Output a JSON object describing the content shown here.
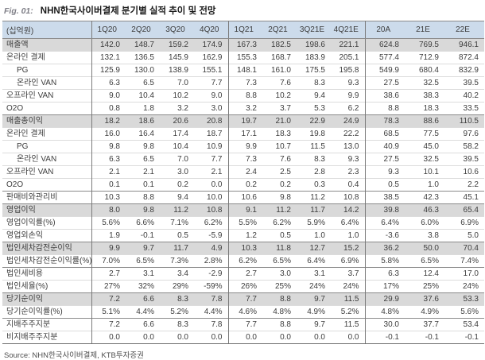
{
  "fig_label": "Fig. 01:",
  "title": "NHN한국사이버결제 분기별 실적 추이 및 전망",
  "source": "Source: NHN한국사이버결제, KTB투자증권",
  "colors": {
    "header_bg": "#ccdbeb",
    "section_row_bg": "#d9d9d9",
    "rule_line": "#8a8a8a",
    "light_line": "#dcdcdc",
    "text": "#3d3d3d"
  },
  "chart_data": {
    "type": "table",
    "unit_header": "(십억원)",
    "columns": [
      "1Q20",
      "2Q20",
      "3Q20",
      "4Q20",
      "1Q21",
      "2Q21",
      "3Q21E",
      "4Q21E",
      "20A",
      "21E",
      "22E"
    ],
    "group_separators_after": [
      3,
      7
    ],
    "rows": [
      {
        "label": "매출액",
        "indent": 0,
        "style": "section",
        "values": [
          "142.0",
          "148.7",
          "159.2",
          "174.9",
          "167.3",
          "182.5",
          "198.6",
          "221.1",
          "624.8",
          "769.5",
          "946.1"
        ]
      },
      {
        "label": "온라인 결제",
        "indent": 0,
        "style": "plain",
        "values": [
          "132.1",
          "136.5",
          "145.9",
          "162.9",
          "155.3",
          "168.7",
          "183.9",
          "205.1",
          "577.4",
          "712.9",
          "872.4"
        ]
      },
      {
        "label": "PG",
        "indent": 1,
        "style": "plain",
        "values": [
          "125.9",
          "130.0",
          "138.9",
          "155.1",
          "148.1",
          "161.0",
          "175.5",
          "195.8",
          "549.9",
          "680.4",
          "832.9"
        ]
      },
      {
        "label": "온라인 VAN",
        "indent": 1,
        "style": "plain",
        "values": [
          "6.3",
          "6.5",
          "7.0",
          "7.7",
          "7.3",
          "7.6",
          "8.3",
          "9.3",
          "27.5",
          "32.5",
          "39.5"
        ]
      },
      {
        "label": "오프라인 VAN",
        "indent": 0,
        "style": "plain",
        "values": [
          "9.0",
          "10.4",
          "10.2",
          "9.0",
          "8.8",
          "10.2",
          "9.4",
          "9.9",
          "38.6",
          "38.3",
          "40.2"
        ]
      },
      {
        "label": "O2O",
        "indent": 0,
        "style": "plain",
        "values": [
          "0.8",
          "1.8",
          "3.2",
          "3.0",
          "3.2",
          "3.7",
          "5.3",
          "6.2",
          "8.8",
          "18.3",
          "33.5"
        ]
      },
      {
        "label": "매출총이익",
        "indent": 0,
        "style": "section",
        "values": [
          "18.2",
          "18.6",
          "20.6",
          "20.8",
          "19.7",
          "21.0",
          "22.9",
          "24.9",
          "78.3",
          "88.6",
          "110.5"
        ]
      },
      {
        "label": "온라인 결제",
        "indent": 0,
        "style": "plain",
        "values": [
          "16.0",
          "16.4",
          "17.4",
          "18.7",
          "17.1",
          "18.3",
          "19.8",
          "22.2",
          "68.5",
          "77.5",
          "97.6"
        ]
      },
      {
        "label": "PG",
        "indent": 1,
        "style": "plain",
        "values": [
          "9.8",
          "9.8",
          "10.4",
          "10.9",
          "9.9",
          "10.7",
          "11.5",
          "13.0",
          "40.9",
          "45.0",
          "58.2"
        ]
      },
      {
        "label": "온라인 VAN",
        "indent": 1,
        "style": "plain",
        "values": [
          "6.3",
          "6.5",
          "7.0",
          "7.7",
          "7.3",
          "7.6",
          "8.3",
          "9.3",
          "27.5",
          "32.5",
          "39.5"
        ]
      },
      {
        "label": "오프라인 VAN",
        "indent": 0,
        "style": "plain",
        "values": [
          "2.1",
          "2.1",
          "3.0",
          "2.1",
          "2.4",
          "2.5",
          "2.8",
          "2.3",
          "9.3",
          "10.1",
          "10.6"
        ]
      },
      {
        "label": "O2O",
        "indent": 0,
        "style": "plain",
        "values": [
          "0.1",
          "0.1",
          "0.2",
          "0.0",
          "0.2",
          "0.2",
          "0.3",
          "0.4",
          "0.5",
          "1.0",
          "2.2"
        ]
      },
      {
        "label": "판매비와관리비",
        "indent": 0,
        "style": "rule",
        "values": [
          "10.3",
          "8.8",
          "9.4",
          "10.0",
          "10.6",
          "9.8",
          "11.2",
          "10.8",
          "38.5",
          "42.3",
          "45.1"
        ]
      },
      {
        "label": "영업이익",
        "indent": 0,
        "style": "section",
        "values": [
          "8.0",
          "9.8",
          "11.2",
          "10.8",
          "9.1",
          "11.2",
          "11.7",
          "14.2",
          "39.8",
          "46.3",
          "65.4"
        ]
      },
      {
        "label": "영업이익률(%)",
        "indent": 0,
        "style": "plain",
        "values": [
          "5.6%",
          "6.6%",
          "7.1%",
          "6.2%",
          "5.5%",
          "6.2%",
          "5.9%",
          "6.4%",
          "6.4%",
          "6.0%",
          "6.9%"
        ]
      },
      {
        "label": "영업외손익",
        "indent": 0,
        "style": "plain",
        "values": [
          "1.9",
          "-0.1",
          "0.5",
          "-5.9",
          "1.2",
          "0.5",
          "1.0",
          "1.0",
          "-3.6",
          "3.8",
          "5.0"
        ]
      },
      {
        "label": "법인세차감전순이익",
        "indent": 0,
        "style": "section",
        "values": [
          "9.9",
          "9.7",
          "11.7",
          "4.9",
          "10.3",
          "11.8",
          "12.7",
          "15.2",
          "36.2",
          "50.0",
          "70.4"
        ]
      },
      {
        "label": "법인세차감전순이익률(%)",
        "indent": 0,
        "style": "plain",
        "values": [
          "7.0%",
          "6.5%",
          "7.3%",
          "2.8%",
          "6.2%",
          "6.5%",
          "6.4%",
          "6.9%",
          "5.8%",
          "6.5%",
          "7.4%"
        ]
      },
      {
        "label": "법인세비용",
        "indent": 0,
        "style": "rule",
        "values": [
          "2.7",
          "3.1",
          "3.4",
          "-2.9",
          "2.7",
          "3.0",
          "3.1",
          "3.7",
          "6.3",
          "12.4",
          "17.0"
        ]
      },
      {
        "label": "법인세율(%)",
        "indent": 0,
        "style": "plain",
        "values": [
          "27%",
          "32%",
          "29%",
          "-59%",
          "26%",
          "25%",
          "24%",
          "24%",
          "17%",
          "25%",
          "24%"
        ]
      },
      {
        "label": "당기순이익",
        "indent": 0,
        "style": "section",
        "values": [
          "7.2",
          "6.6",
          "8.3",
          "7.8",
          "7.7",
          "8.8",
          "9.7",
          "11.5",
          "29.9",
          "37.6",
          "53.3"
        ]
      },
      {
        "label": "당기순이익률(%)",
        "indent": 0,
        "style": "plain",
        "values": [
          "5.1%",
          "4.4%",
          "5.2%",
          "4.4%",
          "4.6%",
          "4.8%",
          "4.9%",
          "5.2%",
          "4.8%",
          "4.9%",
          "5.6%"
        ]
      },
      {
        "label": "지배주주지분",
        "indent": 0,
        "style": "rule",
        "values": [
          "7.2",
          "6.6",
          "8.3",
          "7.8",
          "7.7",
          "8.8",
          "9.7",
          "11.5",
          "30.0",
          "37.7",
          "53.4"
        ]
      },
      {
        "label": "비지배주주지분",
        "indent": 0,
        "style": "plain",
        "values": [
          "0.0",
          "0.0",
          "0.0",
          "0.0",
          "0.0",
          "0.0",
          "0.0",
          "0.0",
          "-0.1",
          "-0.1",
          "-0.1"
        ]
      }
    ]
  }
}
